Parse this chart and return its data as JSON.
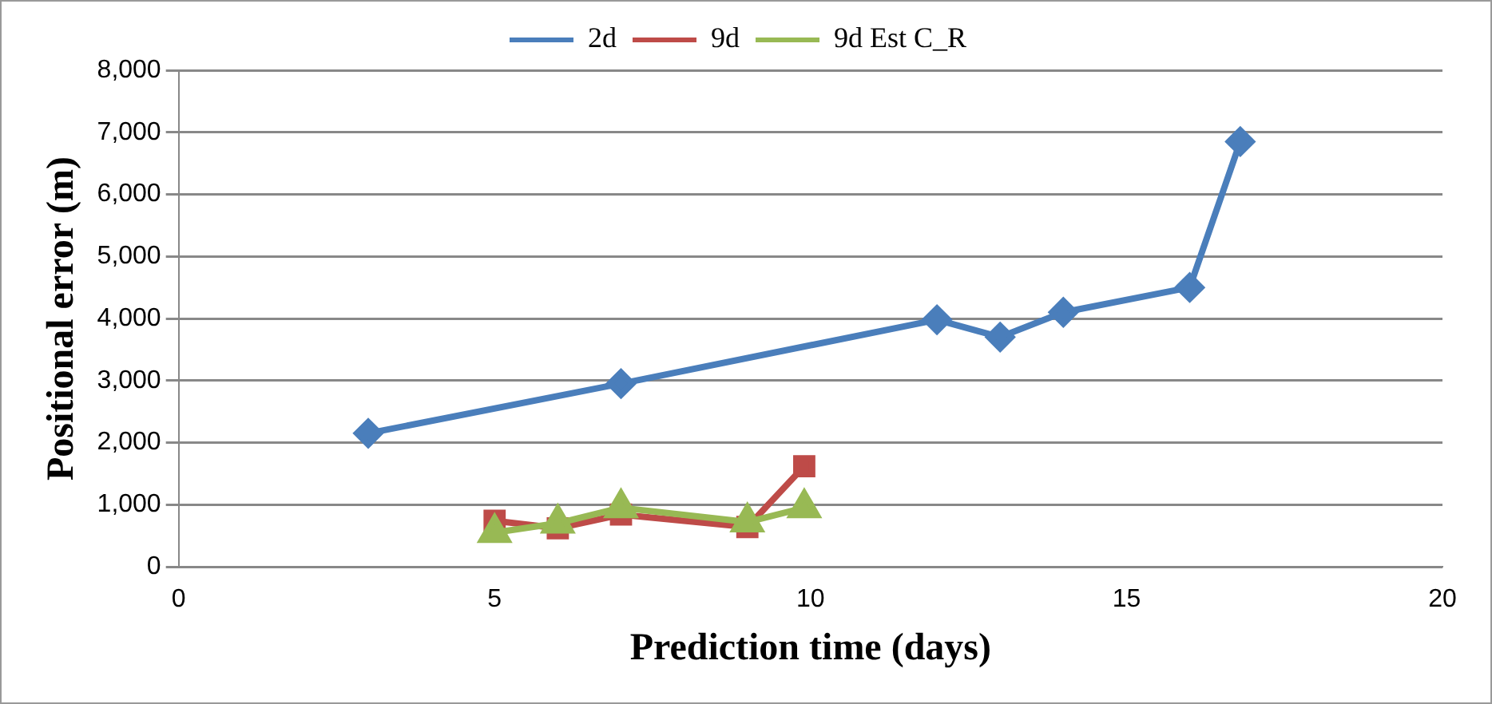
{
  "chart_data": {
    "type": "line",
    "xlabel": "Prediction time (days)",
    "ylabel": "Positional error (m)",
    "series": [
      {
        "name": "2d",
        "color": "#4a7ebb",
        "marker": "diamond",
        "x": [
          3,
          7,
          12,
          13,
          14,
          16,
          16.8
        ],
        "values": [
          2150,
          2950,
          3980,
          3700,
          4100,
          4500,
          6850
        ]
      },
      {
        "name": "9d",
        "color": "#be4b48",
        "marker": "square",
        "x": [
          5,
          6,
          7,
          9,
          9.9
        ],
        "values": [
          740,
          620,
          840,
          640,
          1620
        ]
      },
      {
        "name": "9d Est C_R",
        "color": "#98b954",
        "marker": "triangle",
        "x": [
          5,
          6,
          7,
          9,
          9.9
        ],
        "values": [
          550,
          700,
          950,
          720,
          950
        ]
      }
    ],
    "xlim": [
      0,
      20
    ],
    "xticks": [
      0,
      5,
      10,
      15,
      20
    ],
    "ylim": [
      0,
      8000
    ],
    "yticks": [
      {
        "value": 0,
        "label": "0"
      },
      {
        "value": 1000,
        "label": "1,000"
      },
      {
        "value": 2000,
        "label": "2,000"
      },
      {
        "value": 3000,
        "label": "3,000"
      },
      {
        "value": 4000,
        "label": "4,000"
      },
      {
        "value": 5000,
        "label": "5,000"
      },
      {
        "value": 6000,
        "label": "6,000"
      },
      {
        "value": 7000,
        "label": "7,000"
      },
      {
        "value": 8000,
        "label": "8,000"
      }
    ],
    "grid": "y",
    "legend": "top"
  }
}
